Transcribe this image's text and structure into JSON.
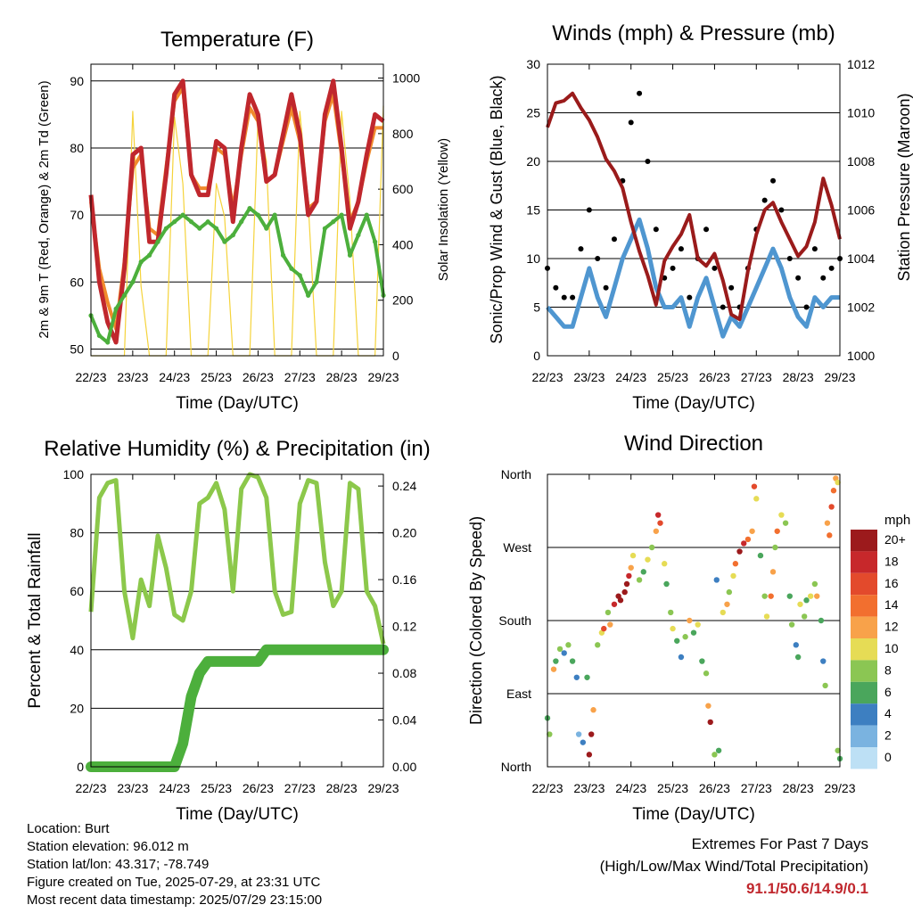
{
  "xticks": [
    "22/23",
    "23/23",
    "24/23",
    "25/23",
    "26/23",
    "27/23",
    "28/23",
    "29/23"
  ],
  "xlabel": "Time (Day/UTC)",
  "info": {
    "location": "Location: Burt",
    "elevation": "Station elevation: 96.012 m",
    "latlon": "Station lat/lon: 43.317; -78.749",
    "created": "Figure created on Tue, 2025-07-29, at 23:31 UTC",
    "recent": "Most recent data timestamp: 2025/07/29 23:15:00"
  },
  "extremes": {
    "title": "Extremes For Past 7 Days",
    "subtitle": "(High/Low/Max Wind/Total Precipitation)",
    "values": "91.1/50.6/14.9/0.1"
  },
  "colors": {
    "red": "#c0272d",
    "orange": "#f08a2c",
    "green_td": "#4caf3c",
    "insolation": "#f5d33b",
    "gust": "#000000",
    "wind": "#4f96d0",
    "pressure": "#9a1b1b",
    "rh": "#8cc84b",
    "precip": "#4caf3c"
  },
  "chart_data": [
    {
      "type": "line",
      "title": "Temperature (F)",
      "ylabel": "2m & 9m T (Red, Orange) & 2m Td (Green)",
      "y2label": "Solar Insolation (Yellow)",
      "ylim": [
        49,
        92.5
      ],
      "yticks": [
        50,
        60,
        70,
        80,
        90
      ],
      "y2lim": [
        0,
        1050
      ],
      "y2ticks": [
        0,
        200,
        400,
        600,
        800,
        1000
      ],
      "xlim": [
        0,
        7
      ],
      "x": [
        0,
        0.2,
        0.4,
        0.6,
        0.8,
        1.0,
        1.2,
        1.4,
        1.6,
        1.8,
        2.0,
        2.2,
        2.4,
        2.6,
        2.8,
        3.0,
        3.2,
        3.4,
        3.6,
        3.8,
        4.0,
        4.2,
        4.4,
        4.6,
        4.8,
        5.0,
        5.2,
        5.4,
        5.6,
        5.8,
        6.0,
        6.2,
        6.4,
        6.6,
        6.8,
        7.0
      ],
      "series": [
        {
          "name": "2m T",
          "axis": "y",
          "values": [
            73,
            60,
            54,
            51,
            62,
            79,
            80,
            66,
            66,
            76,
            88,
            90,
            76,
            73,
            73,
            81,
            80,
            69,
            80,
            88,
            85,
            75,
            76,
            82,
            88,
            82,
            70,
            72,
            85,
            90,
            80,
            68,
            72,
            79,
            85,
            84
          ]
        },
        {
          "name": "9m T",
          "axis": "y",
          "values": [
            72,
            62,
            57,
            53,
            63,
            77,
            79,
            68,
            67,
            77,
            87,
            89,
            76,
            74,
            74,
            80,
            79,
            71,
            79,
            86,
            84,
            75,
            76,
            81,
            86,
            81,
            71,
            72,
            84,
            88,
            79,
            69,
            72,
            78,
            83,
            83
          ]
        },
        {
          "name": "2m Td",
          "axis": "y",
          "values": [
            55,
            52,
            51,
            56,
            58,
            60,
            63,
            64,
            66,
            68,
            69,
            70,
            69,
            68,
            69,
            68,
            66,
            67,
            69,
            71,
            70,
            68,
            70,
            64,
            62,
            61,
            58,
            60,
            68,
            69,
            70,
            64,
            67,
            70,
            66,
            58
          ]
        },
        {
          "name": "Solar Insolation",
          "axis": "y2",
          "values": [
            0,
            0,
            0,
            0,
            0,
            880,
            250,
            0,
            0,
            0,
            860,
            620,
            0,
            0,
            0,
            620,
            500,
            0,
            0,
            0,
            860,
            700,
            0,
            0,
            0,
            880,
            550,
            0,
            0,
            0,
            880,
            560,
            0,
            0,
            0,
            900
          ]
        }
      ]
    },
    {
      "type": "scatter",
      "title": "Winds (mph) & Pressure (mb)",
      "ylabel": "Sonic/Prop Wind & Gust (Blue, Black)",
      "y2label": "Station Pressure (Maroon)",
      "ylim": [
        0,
        30
      ],
      "yticks": [
        0,
        5,
        10,
        15,
        20,
        25,
        30
      ],
      "y2lim": [
        1000,
        1012
      ],
      "y2ticks": [
        1000,
        1002,
        1004,
        1006,
        1008,
        1010,
        1012
      ],
      "xlim": [
        0,
        7
      ],
      "x": [
        0,
        0.2,
        0.4,
        0.6,
        0.8,
        1.0,
        1.2,
        1.4,
        1.6,
        1.8,
        2.0,
        2.2,
        2.4,
        2.6,
        2.8,
        3.0,
        3.2,
        3.4,
        3.6,
        3.8,
        4.0,
        4.2,
        4.4,
        4.6,
        4.8,
        5.0,
        5.2,
        5.4,
        5.6,
        5.8,
        6.0,
        6.2,
        6.4,
        6.6,
        6.8,
        7.0
      ],
      "series": [
        {
          "name": "Gust",
          "axis": "y",
          "values": [
            9,
            7,
            6,
            6,
            11,
            15,
            10,
            7,
            12,
            18,
            24,
            27,
            20,
            13,
            8,
            9,
            11,
            6,
            10,
            13,
            9,
            5,
            7,
            5,
            9,
            13,
            16,
            18,
            15,
            10,
            8,
            5,
            11,
            8,
            9,
            10
          ]
        },
        {
          "name": "Wind",
          "axis": "y",
          "values": [
            5,
            4,
            3,
            3,
            6,
            9,
            6,
            4,
            7,
            10,
            12,
            14,
            11,
            7,
            5,
            5,
            6,
            3,
            6,
            8,
            5,
            2,
            4,
            3,
            5,
            7,
            9,
            11,
            9,
            6,
            4,
            3,
            6,
            5,
            6,
            6
          ]
        },
        {
          "name": "Pressure",
          "axis": "y2",
          "values": [
            1009.4,
            1010.4,
            1010.5,
            1010.8,
            1010.2,
            1009.7,
            1009.0,
            1008.1,
            1007.6,
            1006.9,
            1005.5,
            1004.3,
            1003.3,
            1002.1,
            1003.9,
            1004.5,
            1005.0,
            1005.8,
            1004.0,
            1003.7,
            1004.2,
            1003.1,
            1001.7,
            1001.5,
            1003.5,
            1005.0,
            1006.0,
            1006.3,
            1005.5,
            1004.8,
            1004.1,
            1004.5,
            1005.5,
            1007.3,
            1006.2,
            1004.8
          ]
        }
      ]
    },
    {
      "type": "line",
      "title": "Relative Humidity (%) & Precipitation (in)",
      "ylabel": "Percent & Total Rainfall",
      "ylim": [
        0,
        100
      ],
      "yticks": [
        0,
        20,
        40,
        60,
        80,
        100
      ],
      "y2lim": [
        0,
        0.25
      ],
      "y2ticks": [
        "0.00",
        "0.04",
        "0.08",
        "0.12",
        "0.16",
        "0.20",
        "0.24"
      ],
      "xlim": [
        0,
        7
      ],
      "x": [
        0,
        0.2,
        0.4,
        0.6,
        0.8,
        1.0,
        1.2,
        1.4,
        1.6,
        1.8,
        2.0,
        2.2,
        2.4,
        2.6,
        2.8,
        3.0,
        3.2,
        3.4,
        3.6,
        3.8,
        4.0,
        4.2,
        4.4,
        4.6,
        4.8,
        5.0,
        5.2,
        5.4,
        5.6,
        5.8,
        6.0,
        6.2,
        6.4,
        6.6,
        6.8,
        7.0
      ],
      "series": [
        {
          "name": "RH",
          "axis": "y",
          "values": [
            53,
            92,
            97,
            98,
            60,
            44,
            64,
            55,
            79,
            68,
            52,
            50,
            60,
            90,
            92,
            97,
            88,
            60,
            95,
            100,
            99,
            92,
            60,
            52,
            53,
            90,
            98,
            97,
            70,
            55,
            60,
            97,
            95,
            60,
            55,
            42
          ]
        },
        {
          "name": "Precip",
          "axis": "y2",
          "values": [
            0,
            0,
            0,
            0,
            0,
            0,
            0,
            0,
            0,
            0,
            0,
            0.02,
            0.06,
            0.08,
            0.09,
            0.09,
            0.09,
            0.09,
            0.09,
            0.09,
            0.09,
            0.1,
            0.1,
            0.1,
            0.1,
            0.1,
            0.1,
            0.1,
            0.1,
            0.1,
            0.1,
            0.1,
            0.1,
            0.1,
            0.1,
            0.1
          ]
        }
      ]
    },
    {
      "type": "scatter",
      "title": "Wind Direction",
      "ylabel": "Direction (Colored By Speed)",
      "yticks": [
        "North",
        "East",
        "South",
        "West",
        "North"
      ],
      "ylim": [
        0,
        360
      ],
      "xlim": [
        0,
        7
      ],
      "colorbar": {
        "title": "mph",
        "labels": [
          "20+",
          "18",
          "16",
          "14",
          "12",
          "10",
          "8",
          "6",
          "4",
          "2",
          "0"
        ],
        "colors": [
          "#9c1a1c",
          "#c7282b",
          "#e34a2c",
          "#f26f2f",
          "#f8a24a",
          "#e6dc55",
          "#8bc653",
          "#4aa65c",
          "#3d7fc1",
          "#7ab3e0",
          "#bde0f5"
        ]
      },
      "points": [
        [
          0.0,
          60,
          3
        ],
        [
          0.05,
          40,
          4
        ],
        [
          0.15,
          120,
          6
        ],
        [
          0.2,
          130,
          3
        ],
        [
          0.3,
          145,
          4
        ],
        [
          0.4,
          140,
          2
        ],
        [
          0.5,
          150,
          4
        ],
        [
          0.6,
          130,
          3
        ],
        [
          0.7,
          110,
          2
        ],
        [
          0.75,
          40,
          1
        ],
        [
          0.85,
          30,
          2
        ],
        [
          0.95,
          110,
          3
        ],
        [
          1.0,
          15,
          11
        ],
        [
          1.05,
          40,
          12
        ],
        [
          1.1,
          70,
          6
        ],
        [
          1.2,
          150,
          4
        ],
        [
          1.3,
          165,
          5
        ],
        [
          1.35,
          170,
          8
        ],
        [
          1.45,
          190,
          4
        ],
        [
          1.5,
          175,
          6
        ],
        [
          1.6,
          200,
          9
        ],
        [
          1.7,
          210,
          12
        ],
        [
          1.75,
          205,
          14
        ],
        [
          1.85,
          215,
          15
        ],
        [
          1.9,
          225,
          12
        ],
        [
          1.95,
          235,
          9
        ],
        [
          2.0,
          245,
          6
        ],
        [
          2.05,
          260,
          5
        ],
        [
          2.2,
          230,
          4
        ],
        [
          2.3,
          240,
          3
        ],
        [
          2.4,
          255,
          5
        ],
        [
          2.5,
          270,
          4
        ],
        [
          2.6,
          290,
          6
        ],
        [
          2.65,
          310,
          9
        ],
        [
          2.7,
          300,
          8
        ],
        [
          2.8,
          250,
          5
        ],
        [
          2.85,
          225,
          3
        ],
        [
          2.95,
          190,
          4
        ],
        [
          3.0,
          170,
          5
        ],
        [
          3.1,
          155,
          3
        ],
        [
          3.2,
          135,
          2
        ],
        [
          3.3,
          160,
          4
        ],
        [
          3.4,
          180,
          6
        ],
        [
          3.5,
          165,
          3
        ],
        [
          3.6,
          175,
          5
        ],
        [
          3.7,
          130,
          3
        ],
        [
          3.8,
          115,
          4
        ],
        [
          3.85,
          75,
          6
        ],
        [
          3.9,
          55,
          10
        ],
        [
          4.0,
          15,
          4
        ],
        [
          4.05,
          230,
          2
        ],
        [
          4.1,
          20,
          3
        ],
        [
          4.2,
          190,
          5
        ],
        [
          4.3,
          200,
          6
        ],
        [
          4.35,
          215,
          4
        ],
        [
          4.45,
          235,
          5
        ],
        [
          4.5,
          250,
          7
        ],
        [
          4.6,
          265,
          10
        ],
        [
          4.7,
          275,
          9
        ],
        [
          4.8,
          280,
          7
        ],
        [
          4.9,
          290,
          6
        ],
        [
          4.95,
          345,
          8
        ],
        [
          5.0,
          330,
          5
        ],
        [
          5.1,
          260,
          3
        ],
        [
          5.2,
          210,
          4
        ],
        [
          5.25,
          185,
          5
        ],
        [
          5.35,
          210,
          7
        ],
        [
          5.4,
          240,
          6
        ],
        [
          5.45,
          270,
          4
        ],
        [
          5.5,
          290,
          7
        ],
        [
          5.6,
          310,
          5
        ],
        [
          5.7,
          300,
          4
        ],
        [
          5.8,
          210,
          3
        ],
        [
          5.85,
          175,
          4
        ],
        [
          5.95,
          150,
          2
        ],
        [
          6.0,
          135,
          3
        ],
        [
          6.05,
          200,
          5
        ],
        [
          6.15,
          185,
          4
        ],
        [
          6.2,
          205,
          3
        ],
        [
          6.3,
          210,
          5
        ],
        [
          6.4,
          225,
          4
        ],
        [
          6.45,
          210,
          6
        ],
        [
          6.55,
          180,
          3
        ],
        [
          6.6,
          130,
          2
        ],
        [
          6.65,
          100,
          4
        ],
        [
          6.7,
          300,
          6
        ],
        [
          6.75,
          285,
          7
        ],
        [
          6.8,
          320,
          8
        ],
        [
          6.85,
          340,
          7
        ],
        [
          6.9,
          355,
          6
        ],
        [
          6.95,
          350,
          5
        ],
        [
          6.95,
          20,
          4
        ],
        [
          7.0,
          10,
          3
        ]
      ]
    }
  ]
}
